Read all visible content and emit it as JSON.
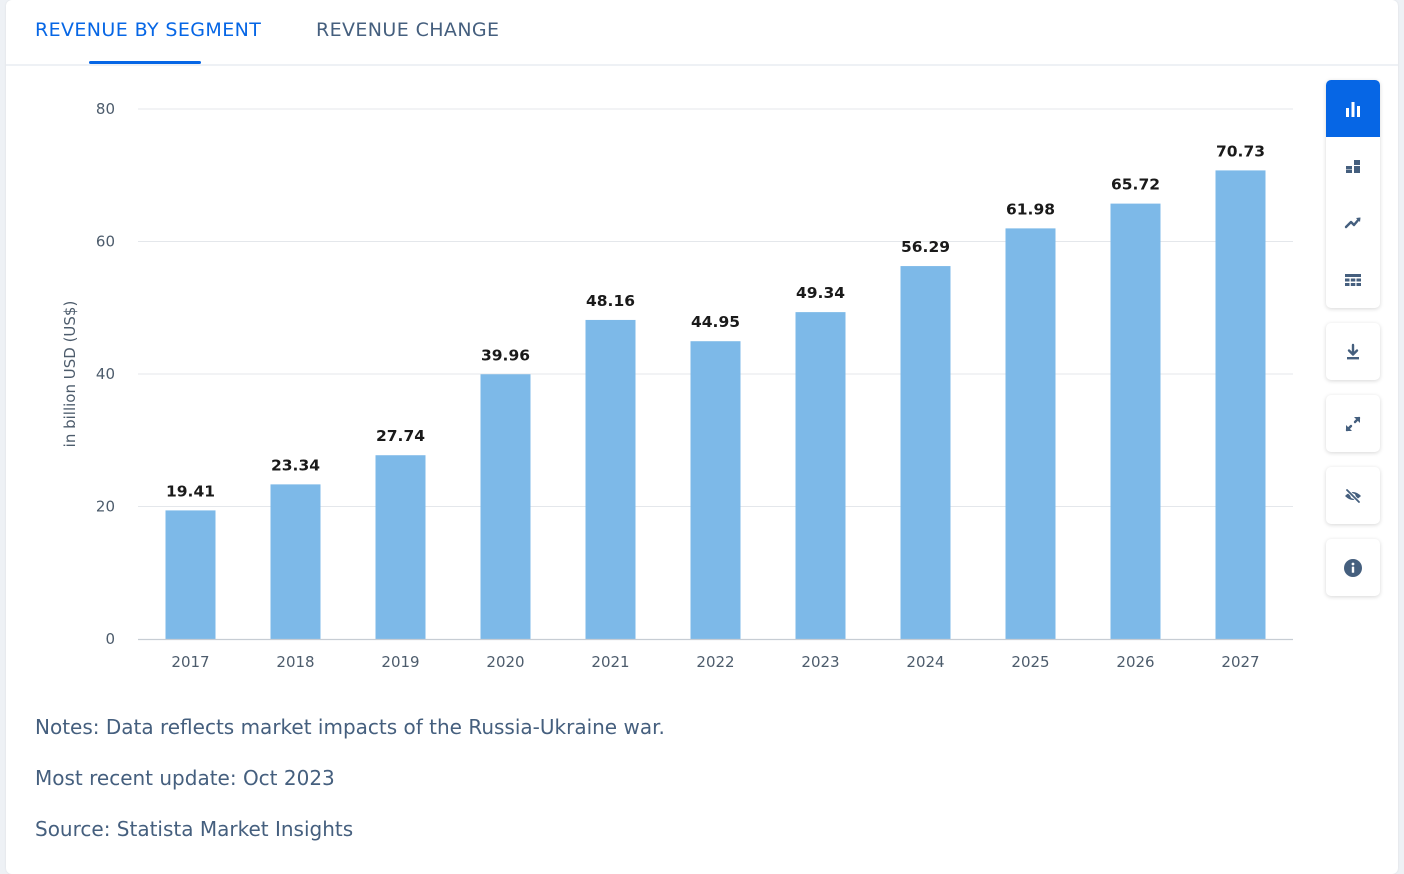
{
  "tabs": [
    {
      "label": "REVENUE BY SEGMENT",
      "active": true
    },
    {
      "label": "REVENUE CHANGE",
      "active": false
    }
  ],
  "chart_data": {
    "type": "bar",
    "categories": [
      "2017",
      "2018",
      "2019",
      "2020",
      "2021",
      "2022",
      "2023",
      "2024",
      "2025",
      "2026",
      "2027"
    ],
    "values": [
      19.41,
      23.34,
      27.74,
      39.96,
      48.16,
      44.95,
      49.34,
      56.29,
      61.98,
      65.72,
      70.73
    ],
    "value_labels": [
      "19.41",
      "23.34",
      "27.74",
      "39.96",
      "48.16",
      "44.95",
      "49.34",
      "56.29",
      "61.98",
      "65.72",
      "70.73"
    ],
    "ylabel": "in billion USD (US$)",
    "xlabel": "",
    "ylim": [
      0,
      80
    ],
    "yticks": [
      0,
      20,
      40,
      60,
      80
    ],
    "grid": true,
    "bar_color": "#7db9e8"
  },
  "toolbar": {
    "chart_types": [
      {
        "icon": "bar-chart-icon",
        "active": true
      },
      {
        "icon": "stacked-chart-icon",
        "active": false
      },
      {
        "icon": "trend-line-icon",
        "active": false
      },
      {
        "icon": "table-grid-icon",
        "active": false
      }
    ],
    "actions": [
      {
        "icon": "download-icon"
      },
      {
        "icon": "expand-icon"
      },
      {
        "icon": "hide-eye-icon"
      },
      {
        "icon": "info-icon"
      }
    ]
  },
  "notes": {
    "note": "Notes: Data reflects market impacts of the Russia-Ukraine war.",
    "update": "Most recent update: Oct 2023",
    "source": "Source: Statista Market Insights"
  },
  "colors": {
    "accent": "#0666e5",
    "bar": "#7db9e8",
    "text_muted": "#455f7e"
  }
}
